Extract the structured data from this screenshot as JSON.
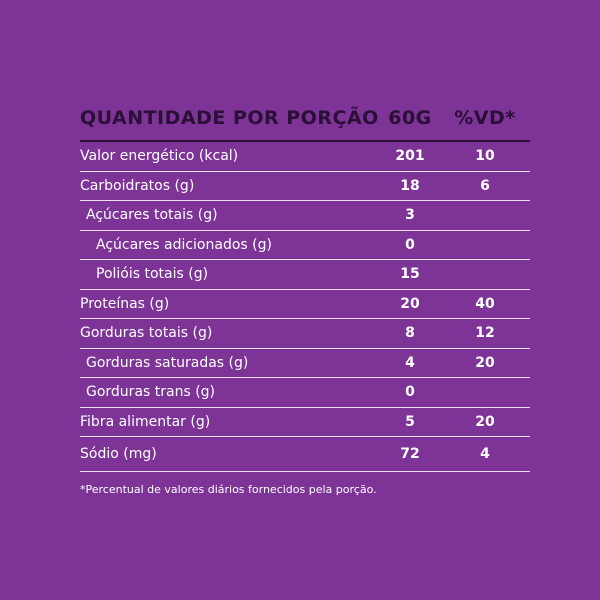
{
  "table": {
    "header": {
      "name": "QUANTIDADE POR PORÇÃO",
      "amount": "60g",
      "vd": "%VD*"
    },
    "rows": [
      {
        "name": "Valor energético (kcal)",
        "amount": "201",
        "vd": "10"
      },
      {
        "name": "Carboidratos (g)",
        "amount": "18",
        "vd": "6"
      },
      {
        "name": "Açúcares totais (g)",
        "amount": "3",
        "vd": ""
      },
      {
        "name": "Açúcares adicionados (g)",
        "amount": "0",
        "vd": ""
      },
      {
        "name": "Polióis totais (g)",
        "amount": "15",
        "vd": ""
      },
      {
        "name": "Proteínas (g)",
        "amount": "20",
        "vd": "40"
      },
      {
        "name": "Gorduras totais (g)",
        "amount": "8",
        "vd": "12"
      },
      {
        "name": "Gorduras saturadas (g)",
        "amount": "4",
        "vd": "20"
      },
      {
        "name": "Gorduras trans (g)",
        "amount": "0",
        "vd": ""
      },
      {
        "name": "Fibra alimentar (g)",
        "amount": "5",
        "vd": "20"
      },
      {
        "name": "Sódio (mg)",
        "amount": "72",
        "vd": "4"
      }
    ]
  },
  "footnote": "*Percentual de valores diários fornecidos pela porção.",
  "colors": {
    "background": "#7e3397",
    "header_text": "#2a0f36",
    "text": "#ffffff"
  }
}
